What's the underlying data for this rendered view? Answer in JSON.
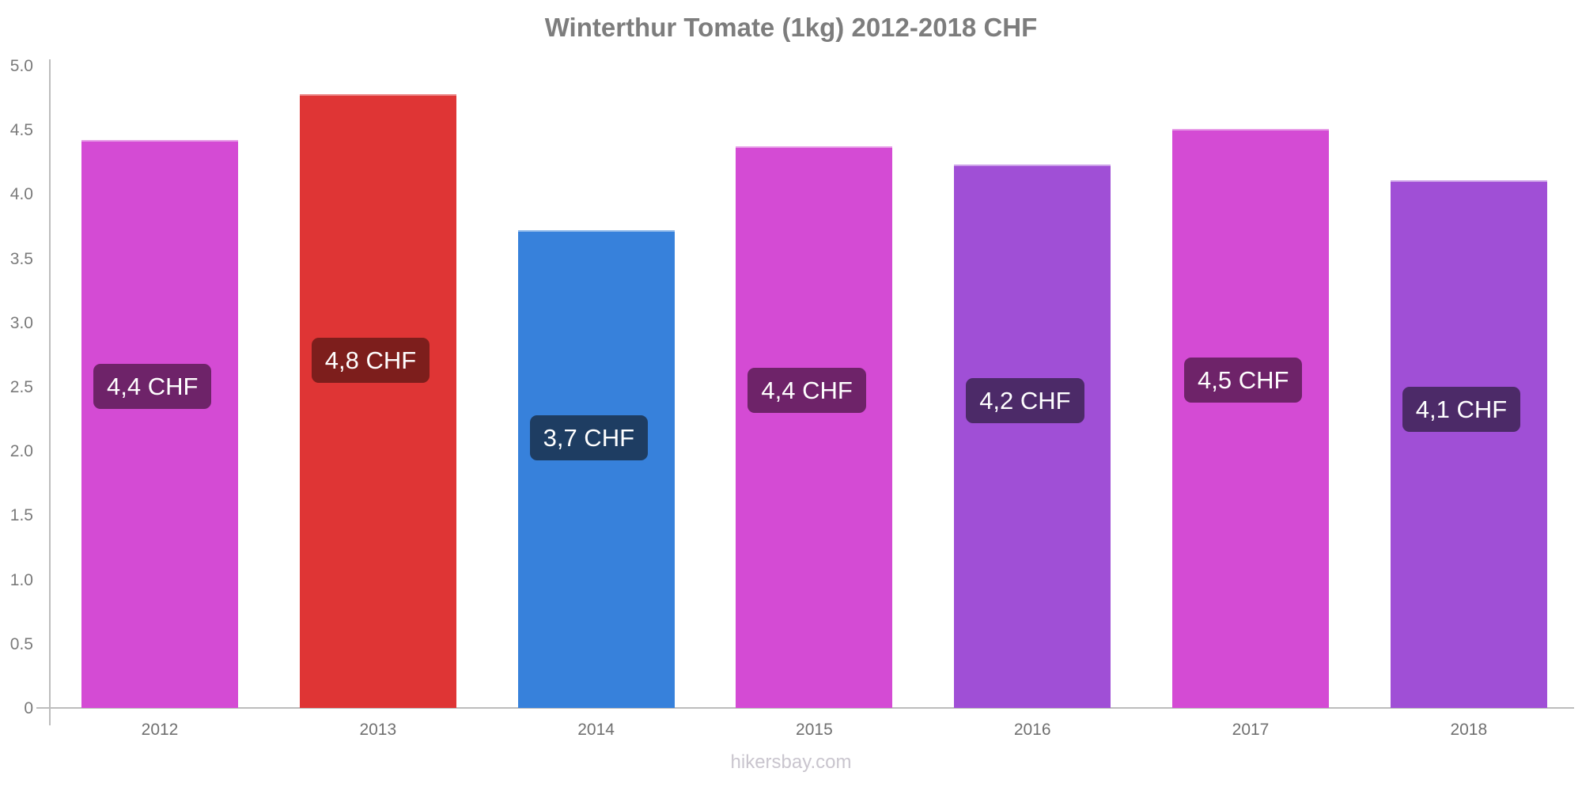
{
  "title": "Winterthur Tomate (1kg) 2012-2018 CHF",
  "footer": "hikersbay.com",
  "axis": {
    "line_color": "#bdbdbd",
    "ytick_labels": [
      "0",
      "0.5",
      "1.0",
      "1.5",
      "2.0",
      "2.5",
      "3.0",
      "3.5",
      "4.0",
      "4.5",
      "5.0"
    ],
    "ytick_values": [
      0,
      0.5,
      1.0,
      1.5,
      2.0,
      2.5,
      3.0,
      3.5,
      4.0,
      4.5,
      5.0
    ]
  },
  "chart_data": {
    "type": "bar",
    "title": "Winterthur Tomate (1kg) 2012-2018 CHF",
    "xlabel": "",
    "ylabel": "",
    "ylim": [
      0,
      5.0
    ],
    "ytick_step": 0.5,
    "grid": false,
    "legend": false,
    "categories": [
      "2012",
      "2013",
      "2014",
      "2015",
      "2016",
      "2017",
      "2018"
    ],
    "values": [
      4.42,
      4.78,
      3.72,
      4.37,
      4.23,
      4.51,
      4.11
    ],
    "bar_value_labels": [
      "4,4 CHF",
      "4,8 CHF",
      "3,7 CHF",
      "4,4 CHF",
      "4,2 CHF",
      "4,5 CHF",
      "4,1 CHF"
    ],
    "bar_colors": [
      "#d44bd4",
      "#df3535",
      "#3781db",
      "#d44bd4",
      "#a04fd6",
      "#d44bd4",
      "#a04fd6"
    ],
    "bar_label_bg_colors": [
      "#6e2369",
      "#7d1e1c",
      "#1e3d62",
      "#6e2369",
      "#4c2a68",
      "#6e2369",
      "#4c2a68"
    ],
    "bar_label_text_color": "#ffffff"
  }
}
